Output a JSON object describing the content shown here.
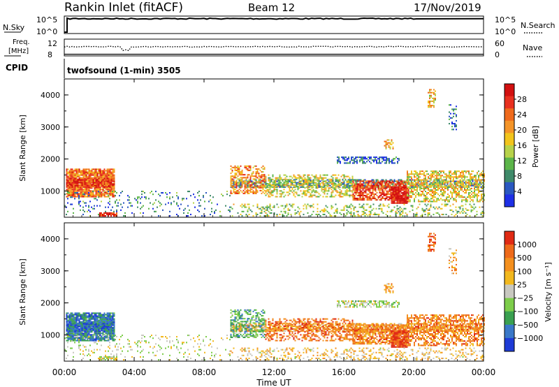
{
  "chart_data": {
    "type": "heatmap",
    "header": {
      "station": "Rankin Inlet (fitACF)",
      "beam": "Beam 12",
      "date": "17/Nov/2019"
    },
    "noise_panel": {
      "left_label": "N.Sky",
      "right_label": "N.Search",
      "left_ticks": [
        "10^5",
        "10^0"
      ],
      "right_ticks": [
        "10^5",
        "10^0"
      ],
      "level_fraction": 0.85
    },
    "freq_panel": {
      "left_label_line1": "Freq.",
      "left_label_line2": "[MHz]",
      "left_ticks": [
        "12",
        "8"
      ],
      "right_label": "Nave",
      "right_ticks": [
        "60",
        "0"
      ],
      "freq_fraction": 0.1,
      "nave_fraction": 0.55
    },
    "cpid": {
      "label": "CPID",
      "text": "twofsound (1-min) 3505"
    },
    "x_axis": {
      "label": "Time UT",
      "ticks": [
        "00:00",
        "04:00",
        "08:00",
        "12:00",
        "16:00",
        "20:00",
        "00:00"
      ],
      "range_hours": [
        0,
        24
      ]
    },
    "power_panel": {
      "ylabel": "Slant Range [km]",
      "yticks": [
        "1000",
        "2000",
        "3000",
        "4000"
      ],
      "ylim_km": [
        180,
        4500
      ],
      "colorbar_label": "Power [dB]",
      "colorbar_ticks": [
        "4",
        "8",
        "12",
        "16",
        "20",
        "24",
        "28"
      ],
      "colors": [
        "#1e2fe6",
        "#2a58c0",
        "#3f8a6a",
        "#5cb54a",
        "#b7d24a",
        "#f2c41c",
        "#f49428",
        "#ef6a1c",
        "#e8301f",
        "#d21010"
      ]
    },
    "velocity_panel": {
      "ylabel": "Slant Range [km]",
      "yticks": [
        "1000",
        "2000",
        "3000",
        "4000"
      ],
      "ylim_km": [
        180,
        4500
      ],
      "colorbar_label": "Velocity [m s⁻¹]",
      "colorbar_ticks": [
        "1000",
        "500",
        "100",
        "25",
        "−25",
        "−100",
        "−500",
        "−1000"
      ],
      "colors": [
        "#1e3bd6",
        "#3a78c8",
        "#3aa050",
        "#7dcd4a",
        "#c8c8c0",
        "#f2b81e",
        "#f4901e",
        "#ee6a1a",
        "#e02a14"
      ]
    },
    "echo_regions": [
      {
        "h0": 0.1,
        "h1": 2.9,
        "r0": 800,
        "r1": 1700,
        "pwr": 0.75,
        "vel": 0.15,
        "density": 0.9
      },
      {
        "h0": 0.1,
        "h1": 2.9,
        "r0": 1100,
        "r1": 1400,
        "pwr": 0.9,
        "vel": 0.1,
        "density": 0.7
      },
      {
        "h0": 0.0,
        "h1": 9.5,
        "r0": 200,
        "r1": 1000,
        "pwr": 0.2,
        "vel": 0.5,
        "density": 0.12
      },
      {
        "h0": 2.0,
        "h1": 3.0,
        "r0": 200,
        "r1": 300,
        "pwr": 0.95,
        "vel": 0.5,
        "density": 0.8
      },
      {
        "h0": 9.5,
        "h1": 24.0,
        "r0": 1100,
        "r1": 1350,
        "pwr": 0.25,
        "vel": 0.7,
        "density": 0.6
      },
      {
        "h0": 9.5,
        "h1": 11.5,
        "r0": 900,
        "r1": 1800,
        "pwr": 0.7,
        "vel": 0.3,
        "density": 0.55
      },
      {
        "h0": 11.5,
        "h1": 16.5,
        "r0": 800,
        "r1": 1500,
        "pwr": 0.5,
        "vel": 0.85,
        "density": 0.45
      },
      {
        "h0": 16.5,
        "h1": 19.6,
        "r0": 700,
        "r1": 1300,
        "pwr": 0.85,
        "vel": 0.8,
        "density": 0.7
      },
      {
        "h0": 18.7,
        "h1": 19.7,
        "r0": 600,
        "r1": 1100,
        "pwr": 1.0,
        "vel": 0.95,
        "density": 0.9
      },
      {
        "h0": 19.6,
        "h1": 24.0,
        "r0": 650,
        "r1": 1600,
        "pwr": 0.55,
        "vel": 0.8,
        "density": 0.55
      },
      {
        "h0": 15.6,
        "h1": 19.2,
        "r0": 1850,
        "r1": 2050,
        "pwr": 0.1,
        "vel": 0.45,
        "density": 0.6
      },
      {
        "h0": 18.3,
        "h1": 18.8,
        "r0": 2300,
        "r1": 2600,
        "pwr": 0.6,
        "vel": 0.7,
        "density": 0.5
      },
      {
        "h0": 20.8,
        "h1": 21.2,
        "r0": 3600,
        "r1": 4200,
        "pwr": 0.6,
        "vel": 0.9,
        "density": 0.5
      },
      {
        "h0": 22.0,
        "h1": 22.4,
        "r0": 2900,
        "r1": 3700,
        "pwr": 0.15,
        "vel": 0.7,
        "density": 0.35
      },
      {
        "h0": 9.5,
        "h1": 24.0,
        "r0": 200,
        "r1": 600,
        "pwr": 0.4,
        "vel": 0.6,
        "density": 0.25
      }
    ]
  }
}
